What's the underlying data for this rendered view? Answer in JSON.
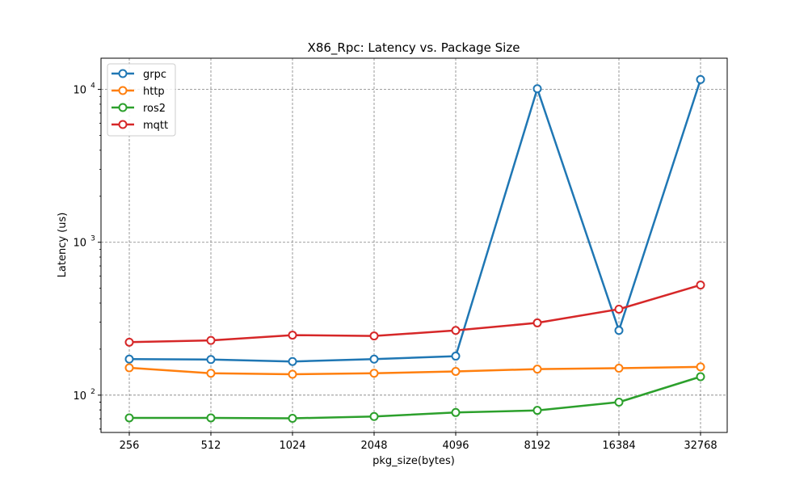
{
  "chart_data": {
    "type": "line",
    "title": "X86_Rpc: Latency vs. Package Size",
    "xlabel": "pkg_size(bytes)",
    "ylabel": "Latency (us)",
    "yscale": "log",
    "ylim": [
      57,
      16000
    ],
    "grid": true,
    "legend_position": "top-left",
    "categories": [
      "256",
      "512",
      "1024",
      "2048",
      "4096",
      "8192",
      "16384",
      "32768"
    ],
    "y_ticks": [
      {
        "value": 100,
        "base": "10",
        "exp": "2"
      },
      {
        "value": 1000,
        "base": "10",
        "exp": "3"
      },
      {
        "value": 10000,
        "base": "10",
        "exp": "4"
      }
    ],
    "series": [
      {
        "name": "grpc",
        "color": "#1f77b4",
        "values": [
          172,
          171,
          166,
          172,
          180,
          10100,
          265,
          11600
        ]
      },
      {
        "name": "http",
        "color": "#ff7f0e",
        "values": [
          151,
          139,
          137,
          139,
          143,
          148,
          150,
          153
        ]
      },
      {
        "name": "ros2",
        "color": "#2ca02c",
        "values": [
          71,
          71,
          70.5,
          72.5,
          77,
          79.5,
          90,
          132
        ]
      },
      {
        "name": "mqtt",
        "color": "#d62728",
        "values": [
          222,
          228,
          247,
          244,
          265,
          297,
          365,
          525
        ]
      }
    ]
  }
}
